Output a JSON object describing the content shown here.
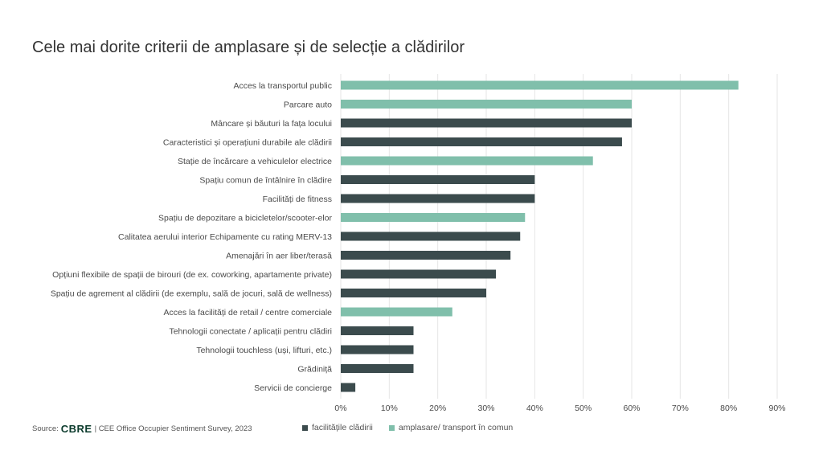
{
  "colors": {
    "building": "#3b4b4d",
    "location": "#80bfab"
  },
  "source": {
    "prefix": "Source:",
    "brand": "CBRE",
    "text": "| CEE Office Occupier Sentiment Survey, 2023"
  },
  "chart_data": {
    "type": "bar",
    "orientation": "horizontal",
    "title": "Cele mai dorite criterii de amplasare și de selecție a clădirilor",
    "xlabel": "",
    "ylabel": "",
    "xlim": [
      0,
      90
    ],
    "ticks": [
      0,
      10,
      20,
      30,
      40,
      50,
      60,
      70,
      80,
      90
    ],
    "tick_labels": [
      "0%",
      "10%",
      "20%",
      "30%",
      "40%",
      "50%",
      "60%",
      "70%",
      "80%",
      "90%"
    ],
    "grid": true,
    "legend_position": "bottom",
    "legend": [
      {
        "key": "building",
        "label": "facilitățile clădirii"
      },
      {
        "key": "location",
        "label": "amplasare/ transport în comun"
      }
    ],
    "categories": [
      "Acces la transportul public",
      "Parcare auto",
      "Mâncare și băuturi la fața locului",
      "Caracteristici și operațiuni durabile ale clădirii",
      "Stație de încărcare a vehiculelor electrice",
      "Spațiu comun de întâlnire în clădire",
      "Facilități de fitness",
      "Spațiu de depozitare a bicicletelor/scooter-elor",
      "Calitatea aerului interior Echipamente cu rating MERV-13",
      "Amenajări în aer liber/terasă",
      "Opțiuni flexibile de spații de birouri (de ex. coworking, apartamente private)",
      "Spațiu de agrement al clădirii (de exemplu, sală de jocuri, sală de wellness)",
      "Acces la facilități de retail / centre comerciale",
      "Tehnologii conectate / aplicații pentru clădiri",
      "Tehnologii touchless (uși, lifturi, etc.)",
      "Grădiniță",
      "Servicii de concierge"
    ],
    "values": [
      82,
      60,
      60,
      58,
      52,
      40,
      40,
      38,
      37,
      35,
      32,
      30,
      23,
      15,
      15,
      15,
      3
    ],
    "groups": [
      "location",
      "location",
      "building",
      "building",
      "location",
      "building",
      "building",
      "location",
      "building",
      "building",
      "building",
      "building",
      "location",
      "building",
      "building",
      "building",
      "building"
    ]
  }
}
